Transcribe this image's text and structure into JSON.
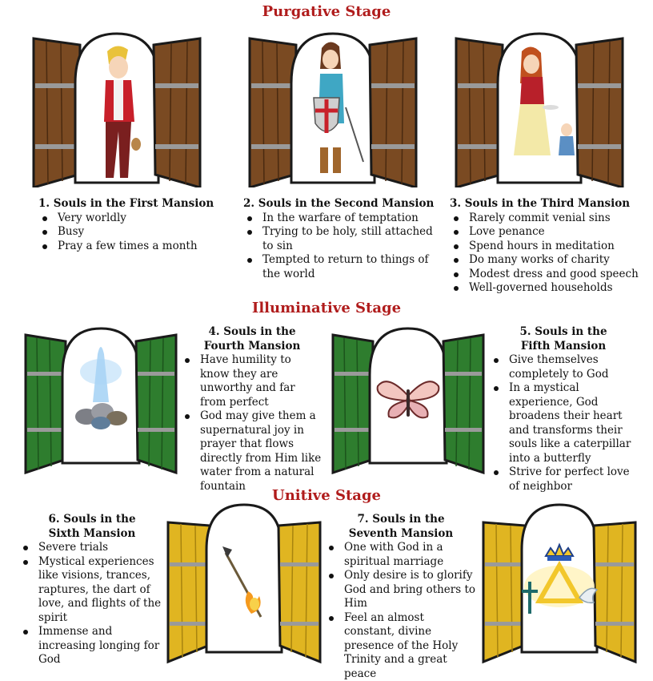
{
  "stages": {
    "purgative": "Purgative Stage",
    "illuminative": "Illuminative Stage",
    "unitive": "Unitive  Stage"
  },
  "colors": {
    "stage_title": "#b01c1c",
    "door_brown": "#7a4a22",
    "door_green": "#2e7d2e",
    "door_gold": "#e0b521",
    "hinge": "#9a9a9a"
  },
  "mansions": [
    {
      "title": "1.  Souls in the First Mansion",
      "items": [
        "Very worldly",
        "Busy",
        "Pray a few times a month"
      ]
    },
    {
      "title": "2.  Souls in the Second Mansion",
      "items": [
        "In the warfare of temptation",
        "Trying to be holy, still attached to sin",
        "Tempted to return to things of the world"
      ]
    },
    {
      "title": "3.  Souls in the Third Mansion",
      "items": [
        "Rarely commit venial sins",
        "Love penance",
        "Spend hours in meditation",
        "Do many works of charity",
        "Modest dress and good speech",
        "Well-governed households"
      ]
    },
    {
      "title_line1": "4.  Souls in the",
      "title_line2": "Fourth Mansion",
      "items": [
        "Have humility to know they are unworthy and far from perfect",
        "God may give them a supernatural joy in prayer that flows directly from Him like water from a natural fountain"
      ]
    },
    {
      "title_line1": "5.  Souls in the",
      "title_line2": "Fifth Mansion",
      "items": [
        "Give themselves completely to God",
        "In a mystical experience, God broadens their heart and transforms their souls like a caterpillar into a butterfly",
        "Strive for perfect love of neighbor"
      ]
    },
    {
      "title_line1": "6.  Souls in the",
      "title_line2": "Sixth Mansion",
      "items": [
        "Severe trials",
        "Mystical experiences like visions, trances, raptures, the dart of love, and flights of the spirit",
        "Immense and increasing longing for God"
      ]
    },
    {
      "title_line1": "7.  Souls in the",
      "title_line2": "Seventh Mansion",
      "items": [
        "One with God in a spiritual marriage",
        "Only desire is to glorify God and bring others to Him",
        "Feel an almost constant, divine presence of the Holy Trinity and a great peace"
      ]
    }
  ],
  "pictures": [
    {
      "door": 1,
      "icon": "worldly-young-man-icon"
    },
    {
      "door": 2,
      "icon": "knight-girl-with-shield-icon"
    },
    {
      "door": 3,
      "icon": "woman-helping-child-icon"
    },
    {
      "door": 4,
      "icon": "fountain-on-rocks-icon"
    },
    {
      "door": 5,
      "icon": "butterfly-icon"
    },
    {
      "door": 6,
      "icon": "flaming-arrow-icon"
    },
    {
      "door": 7,
      "icon": "holy-trinity-crown-dove-cross-icon"
    }
  ]
}
